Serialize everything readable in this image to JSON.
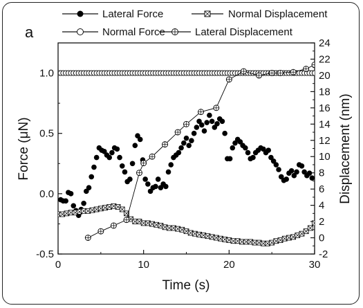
{
  "panel_label": "a",
  "chart_data": {
    "type": "scatter",
    "xlabel": "Time (s)",
    "ylabel_left": "Force (μN)",
    "ylabel_right": "Displacement (nm)",
    "xlim": [
      0,
      30
    ],
    "ylim_left": [
      -0.5,
      1.25
    ],
    "ylim_right": [
      -2,
      24
    ],
    "xticks": [
      0,
      10,
      20,
      30
    ],
    "yticks_left": [
      -0.5,
      0.0,
      0.5,
      1.0
    ],
    "yticks_left_labels": [
      "-0.5",
      "0.0",
      "0.5",
      "1.0"
    ],
    "yticks_right": [
      -2,
      0,
      2,
      4,
      6,
      8,
      10,
      12,
      14,
      16,
      18,
      20,
      22,
      24
    ],
    "grid": false,
    "legend_position": "top",
    "series": [
      {
        "name": "Lateral Force",
        "axis": "left",
        "color": "#000000",
        "marker": "filled-circle",
        "line": "none",
        "x": [
          0.3,
          0.6,
          0.9,
          1.2,
          1.5,
          1.8,
          2.1,
          2.4,
          2.7,
          3.0,
          3.3,
          3.6,
          3.9,
          4.2,
          4.5,
          4.8,
          5.1,
          5.4,
          5.7,
          6.0,
          6.3,
          6.6,
          6.9,
          7.2,
          7.5,
          7.8,
          8.1,
          8.4,
          8.7,
          9.0,
          9.3,
          9.6,
          9.9,
          10.2,
          10.5,
          10.8,
          11.1,
          11.4,
          11.7,
          12.0,
          12.3,
          12.6,
          12.9,
          13.2,
          13.5,
          13.8,
          14.1,
          14.4,
          14.7,
          15.0,
          15.3,
          15.6,
          15.9,
          16.2,
          16.5,
          16.8,
          17.1,
          17.4,
          17.7,
          18.0,
          18.3,
          18.6,
          18.9,
          19.2,
          19.5,
          19.8,
          20.1,
          20.4,
          20.7,
          21.0,
          21.3,
          21.6,
          21.9,
          22.2,
          22.5,
          22.8,
          23.1,
          23.4,
          23.7,
          24.0,
          24.3,
          24.6,
          24.9,
          25.2,
          25.5,
          25.8,
          26.1,
          26.4,
          26.7,
          27.0,
          27.3,
          27.6,
          27.9,
          28.2,
          28.5,
          28.8,
          29.1,
          29.4,
          29.7
        ],
        "values": [
          -0.05,
          -0.06,
          -0.06,
          0.01,
          0.0,
          -0.1,
          -0.14,
          -0.18,
          -0.13,
          -0.08,
          0.02,
          0.05,
          0.14,
          0.22,
          0.3,
          0.38,
          0.36,
          0.35,
          0.32,
          0.3,
          0.34,
          0.38,
          0.37,
          0.3,
          0.23,
          0.18,
          0.1,
          0.12,
          0.25,
          0.4,
          0.48,
          0.45,
          0.28,
          0.12,
          0.08,
          0.02,
          0.05,
          0.06,
          0.12,
          0.05,
          0.08,
          0.06,
          0.18,
          0.24,
          0.3,
          0.32,
          0.34,
          0.38,
          0.42,
          0.46,
          0.4,
          0.44,
          0.5,
          0.55,
          0.6,
          0.57,
          0.52,
          0.59,
          0.65,
          0.6,
          0.55,
          0.58,
          0.62,
          0.6,
          0.5,
          0.29,
          0.29,
          0.38,
          0.42,
          0.45,
          0.43,
          0.4,
          0.38,
          0.34,
          0.29,
          0.3,
          0.34,
          0.36,
          0.38,
          0.37,
          0.34,
          0.36,
          0.3,
          0.27,
          0.24,
          0.2,
          0.14,
          0.11,
          0.12,
          0.17,
          0.19,
          0.15,
          0.18,
          0.24,
          0.23,
          0.18,
          0.15,
          0.17,
          0.13
        ]
      },
      {
        "name": "Normal Force",
        "axis": "left",
        "color": "#000000",
        "marker": "open-circle",
        "line": "none",
        "x": [
          0,
          0.3,
          0.6,
          0.9,
          1.2,
          1.5,
          1.8,
          2.1,
          2.4,
          2.7,
          3.0,
          3.3,
          3.6,
          3.9,
          4.2,
          4.5,
          4.8,
          5.1,
          5.4,
          5.7,
          6.0,
          6.3,
          6.6,
          6.9,
          7.2,
          7.5,
          7.8,
          8.1,
          8.4,
          8.7,
          9.0,
          9.3,
          9.6,
          9.9,
          10.2,
          10.5,
          10.8,
          11.1,
          11.4,
          11.7,
          12.0,
          12.3,
          12.6,
          12.9,
          13.2,
          13.5,
          13.8,
          14.1,
          14.4,
          14.7,
          15.0,
          15.3,
          15.6,
          15.9,
          16.2,
          16.5,
          16.8,
          17.1,
          17.4,
          17.7,
          18.0,
          18.3,
          18.6,
          18.9,
          19.2,
          19.5,
          19.8,
          20.1,
          20.4,
          20.7,
          21.0,
          21.3,
          21.6,
          21.9,
          22.2,
          22.5,
          22.8,
          23.1,
          23.4,
          23.7,
          24.0,
          24.3,
          24.6,
          24.9,
          25.2,
          25.5,
          25.8,
          26.1,
          26.4,
          26.7,
          27.0,
          27.3,
          27.6,
          27.9,
          28.2,
          28.5,
          28.8,
          29.1,
          29.4,
          29.7,
          30.0
        ],
        "values": [
          1.0,
          1.0,
          1.0,
          1.0,
          1.0,
          1.0,
          1.0,
          1.0,
          1.0,
          1.0,
          1.0,
          1.0,
          1.0,
          1.0,
          1.0,
          1.0,
          1.0,
          1.0,
          1.0,
          1.0,
          1.0,
          1.0,
          1.0,
          1.0,
          1.0,
          1.0,
          1.0,
          1.0,
          1.0,
          1.0,
          1.0,
          1.0,
          1.0,
          1.0,
          1.0,
          1.0,
          1.0,
          1.0,
          1.0,
          1.0,
          1.0,
          1.0,
          1.0,
          1.0,
          1.0,
          1.0,
          1.0,
          1.0,
          1.0,
          1.0,
          1.0,
          1.0,
          1.0,
          1.0,
          1.0,
          1.0,
          1.0,
          1.0,
          1.0,
          1.0,
          1.0,
          1.0,
          1.0,
          1.0,
          1.0,
          1.0,
          1.0,
          1.0,
          1.0,
          1.0,
          1.0,
          1.0,
          1.0,
          1.0,
          1.0,
          1.0,
          1.0,
          1.0,
          1.0,
          1.0,
          1.0,
          1.0,
          1.0,
          1.0,
          1.0,
          1.0,
          1.0,
          1.0,
          1.0,
          1.0,
          1.0,
          1.0,
          1.0,
          1.0,
          1.0,
          1.0,
          1.0,
          1.0,
          1.0,
          1.0,
          1.0
        ]
      },
      {
        "name": "Normal Displacement",
        "axis": "right",
        "color": "#000000",
        "marker": "crossed-square",
        "line": "solid",
        "x": [
          0,
          0.5,
          1,
          1.5,
          2,
          2.5,
          3,
          3.5,
          4,
          4.5,
          5,
          5.5,
          6,
          6.5,
          7,
          7.5,
          8,
          8.5,
          9,
          9.5,
          10,
          10.5,
          11,
          11.5,
          12,
          12.5,
          13,
          13.5,
          14,
          14.5,
          15,
          15.5,
          16,
          16.5,
          17,
          17.5,
          18,
          18.5,
          19,
          19.5,
          20,
          20.5,
          21,
          21.5,
          22,
          22.5,
          23,
          23.5,
          24,
          24.5,
          25,
          25.5,
          26,
          26.5,
          27,
          27.5,
          28,
          28.5,
          29,
          29.5,
          30
        ],
        "values": [
          2.9,
          2.9,
          3.0,
          3.1,
          3.1,
          3.2,
          3.3,
          3.3,
          3.4,
          3.5,
          3.6,
          3.7,
          3.8,
          3.9,
          3.8,
          3.5,
          3.0,
          2.3,
          2.0,
          2.0,
          1.8,
          1.8,
          1.7,
          1.6,
          1.5,
          1.3,
          1.2,
          1.2,
          1.1,
          1.0,
          0.8,
          0.6,
          0.5,
          0.4,
          0.3,
          0.2,
          0.1,
          0.0,
          -0.1,
          -0.2,
          -0.3,
          -0.4,
          -0.4,
          -0.5,
          -0.5,
          -0.5,
          -0.6,
          -0.6,
          -0.7,
          -0.7,
          -0.6,
          -0.4,
          -0.3,
          -0.1,
          0.0,
          0.1,
          0.3,
          0.5,
          0.8,
          1.2,
          1.8
        ]
      },
      {
        "name": "Lateral Displacement",
        "axis": "right",
        "color": "#000000",
        "marker": "crossed-circle",
        "line": "solid",
        "x": [
          3.5,
          5.0,
          6.5,
          8.0,
          9.5,
          10.0,
          11.0,
          12.5,
          14.0,
          15.0,
          16.7,
          18.5,
          20.0,
          21.7,
          23.5,
          25.0,
          26.0,
          27.5,
          29.0,
          30.0
        ],
        "values": [
          0.0,
          0.8,
          1.5,
          2.2,
          8.0,
          9.2,
          10.0,
          11.5,
          13.0,
          14.0,
          15.5,
          16.0,
          19.5,
          20.5,
          20.0,
          20.3,
          20.3,
          20.4,
          20.8,
          21.3
        ]
      }
    ]
  }
}
